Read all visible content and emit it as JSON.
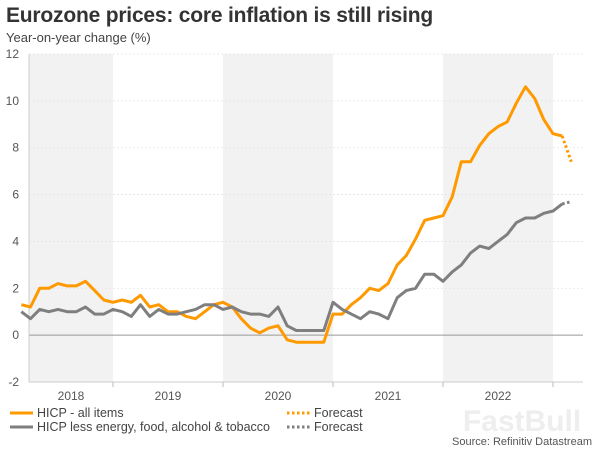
{
  "header": {
    "title": "Eurozone prices: core inflation is still rising",
    "subtitle": "Year-on-year change (%)"
  },
  "source": "Source: Refinitiv Datastream",
  "watermark": "FastBull",
  "colors": {
    "hicp": "#ff9900",
    "core": "#7f7f7f",
    "band": "#f2f2f2"
  },
  "chart_data": {
    "type": "line",
    "title": "Eurozone prices: core inflation is still rising",
    "ylabel": "Year-on-year change (%)",
    "ylim": [
      -2,
      12
    ],
    "yticks": [
      -2,
      0,
      2,
      4,
      6,
      8,
      10,
      12
    ],
    "xticks": [
      "2018",
      "2019",
      "2020",
      "2021",
      "2022"
    ],
    "x_start": "2018-03",
    "x_frequency": "monthly",
    "shaded_years": [
      "2018",
      "2020",
      "2022"
    ],
    "grid": true,
    "legend_placement": "bottom",
    "series": [
      {
        "name": "HICP - all items",
        "color": "#ff9900",
        "values": [
          1.3,
          1.2,
          2.0,
          2.0,
          2.2,
          2.1,
          2.1,
          2.3,
          1.9,
          1.5,
          1.4,
          1.5,
          1.4,
          1.7,
          1.2,
          1.3,
          1.0,
          1.0,
          0.8,
          0.7,
          1.0,
          1.3,
          1.4,
          1.2,
          0.7,
          0.3,
          0.1,
          0.3,
          0.4,
          -0.2,
          -0.3,
          -0.3,
          -0.3,
          -0.3,
          0.9,
          0.9,
          1.3,
          1.6,
          2.0,
          1.9,
          2.2,
          3.0,
          3.4,
          4.1,
          4.9,
          5.0,
          5.1,
          5.9,
          7.4,
          7.4,
          8.1,
          8.6,
          8.9,
          9.1,
          9.9,
          10.6,
          10.1,
          9.2,
          8.6,
          8.5
        ],
        "forecast_name": "Forecast",
        "forecast": [
          8.5,
          7.4
        ]
      },
      {
        "name": "HICP less energy, food, alcohol & tobacco",
        "color": "#7f7f7f",
        "values": [
          1.0,
          0.7,
          1.1,
          1.0,
          1.1,
          1.0,
          1.0,
          1.2,
          0.9,
          0.9,
          1.1,
          1.0,
          0.8,
          1.3,
          0.8,
          1.1,
          0.9,
          0.9,
          1.0,
          1.1,
          1.3,
          1.3,
          1.1,
          1.2,
          1.0,
          0.9,
          0.9,
          0.8,
          1.2,
          0.4,
          0.2,
          0.2,
          0.2,
          0.2,
          1.4,
          1.1,
          0.9,
          0.7,
          1.0,
          0.9,
          0.7,
          1.6,
          1.9,
          2.0,
          2.6,
          2.6,
          2.3,
          2.7,
          3.0,
          3.5,
          3.8,
          3.7,
          4.0,
          4.3,
          4.8,
          5.0,
          5.0,
          5.2,
          5.3,
          5.6
        ],
        "forecast_name": "Forecast",
        "forecast": [
          5.6,
          5.7
        ]
      }
    ]
  }
}
